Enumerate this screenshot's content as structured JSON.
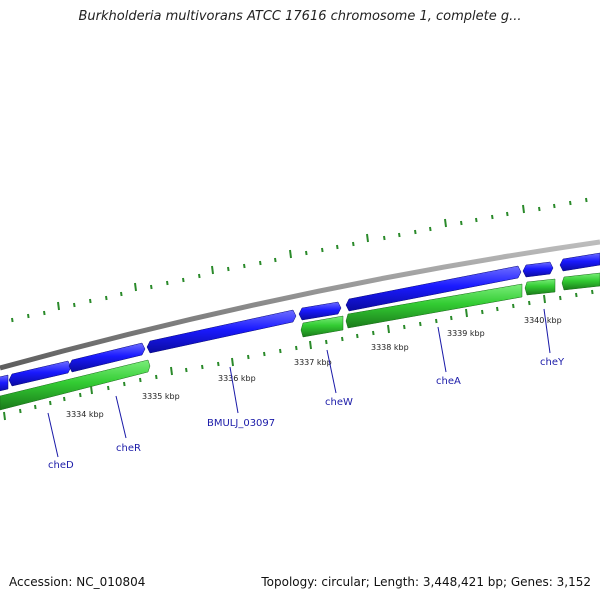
{
  "title": "Burkholderia multivorans ATCC 17616 chromosome 1, complete g...",
  "accession_text": "Accession: NC_010804",
  "summary_text": "Topology: circular; Length: 3,448,421 bp; Genes: 3,152",
  "kbp_labels": [
    "3334 kbp",
    "3335 kbp",
    "3336 kbp",
    "3337 kbp",
    "3338 kbp",
    "3339 kbp",
    "3340 kbp"
  ],
  "gene_labels": [
    "cheD",
    "cheR",
    "BMULJ_03097",
    "cheW",
    "cheA",
    "cheY"
  ],
  "colors": {
    "forward_strand": "#1a1aff",
    "reverse_strand": "#33cc33",
    "backbone": "#8a8a8a",
    "ticks": "#2a8a2a",
    "label": "#1a1aa8"
  }
}
